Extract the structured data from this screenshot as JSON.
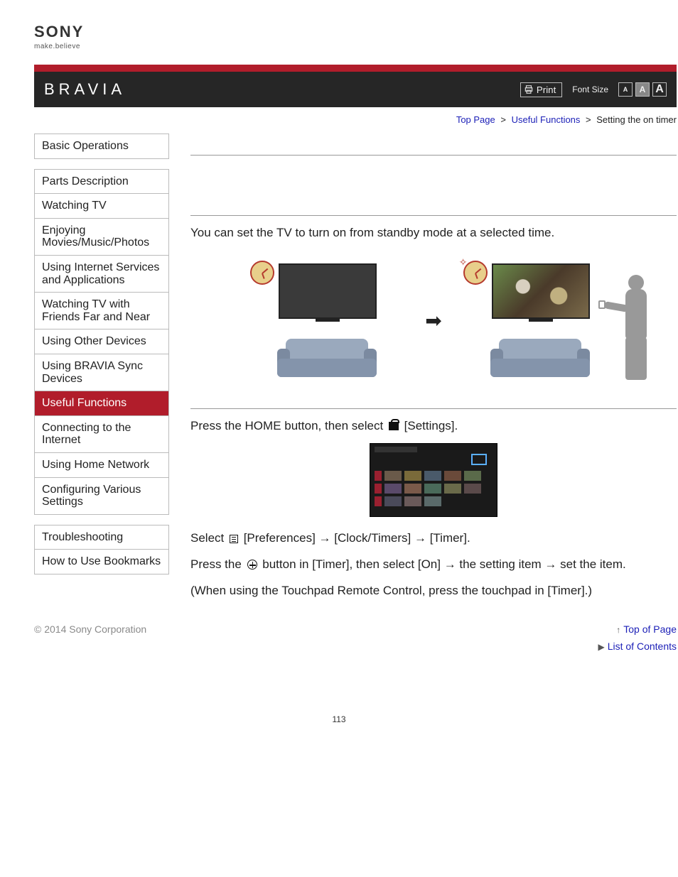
{
  "logo": {
    "brand": "SONY",
    "tagline": "make.believe"
  },
  "header": {
    "product": "BRAVIA",
    "print_label": "Print",
    "font_size_label": "Font Size",
    "font_boxes": [
      "A",
      "A",
      "A"
    ]
  },
  "breadcrumbs": {
    "items": [
      {
        "label": "Top Page",
        "link": true
      },
      {
        "label": "Useful Functions",
        "link": true
      },
      {
        "label": "Setting the on timer",
        "link": false
      }
    ],
    "separator": ">"
  },
  "sidebar": {
    "groups": [
      [
        "Basic Operations"
      ],
      [
        "Parts Description",
        "Watching TV",
        "Enjoying Movies/Music/Photos",
        "Using Internet Services and Applications",
        "Watching TV with Friends Far and Near",
        "Using Other Devices",
        "Using BRAVIA Sync Devices",
        "Useful Functions",
        "Connecting to the Internet",
        "Using Home Network",
        "Configuring Various Settings"
      ],
      [
        "Troubleshooting",
        "How to Use Bookmarks"
      ]
    ],
    "active": "Useful Functions"
  },
  "content": {
    "intro": "You can set the TV to turn on from standby mode at a selected time.",
    "step1_a": "Press the HOME button, then select ",
    "step1_b": " [Settings].",
    "step2_a": "Select ",
    "step2_b": " [Preferences] → [Clock/Timers] → [Timer].",
    "step3_a": "Press the ",
    "step3_b": " button in [Timer], then select [On] → the setting item → set the item.",
    "step4": "(When using the Touchpad Remote Control, press the touchpad in [Timer].)"
  },
  "footer": {
    "copyright": "© 2014 Sony Corporation",
    "top_of_page": "Top of Page",
    "list_of_contents": "List of Contents",
    "page_number": "113"
  },
  "colors": {
    "accent_red": "#b11d2b",
    "dark_bar": "#262626",
    "link_blue": "#1b1fb7",
    "border_gray": "#bbbbbb",
    "muted_text": "#8a8a8a",
    "sofa_fill": "#9aa9bd",
    "clock_fill": "#e8cf8b",
    "clock_hand": "#b53a2e"
  }
}
